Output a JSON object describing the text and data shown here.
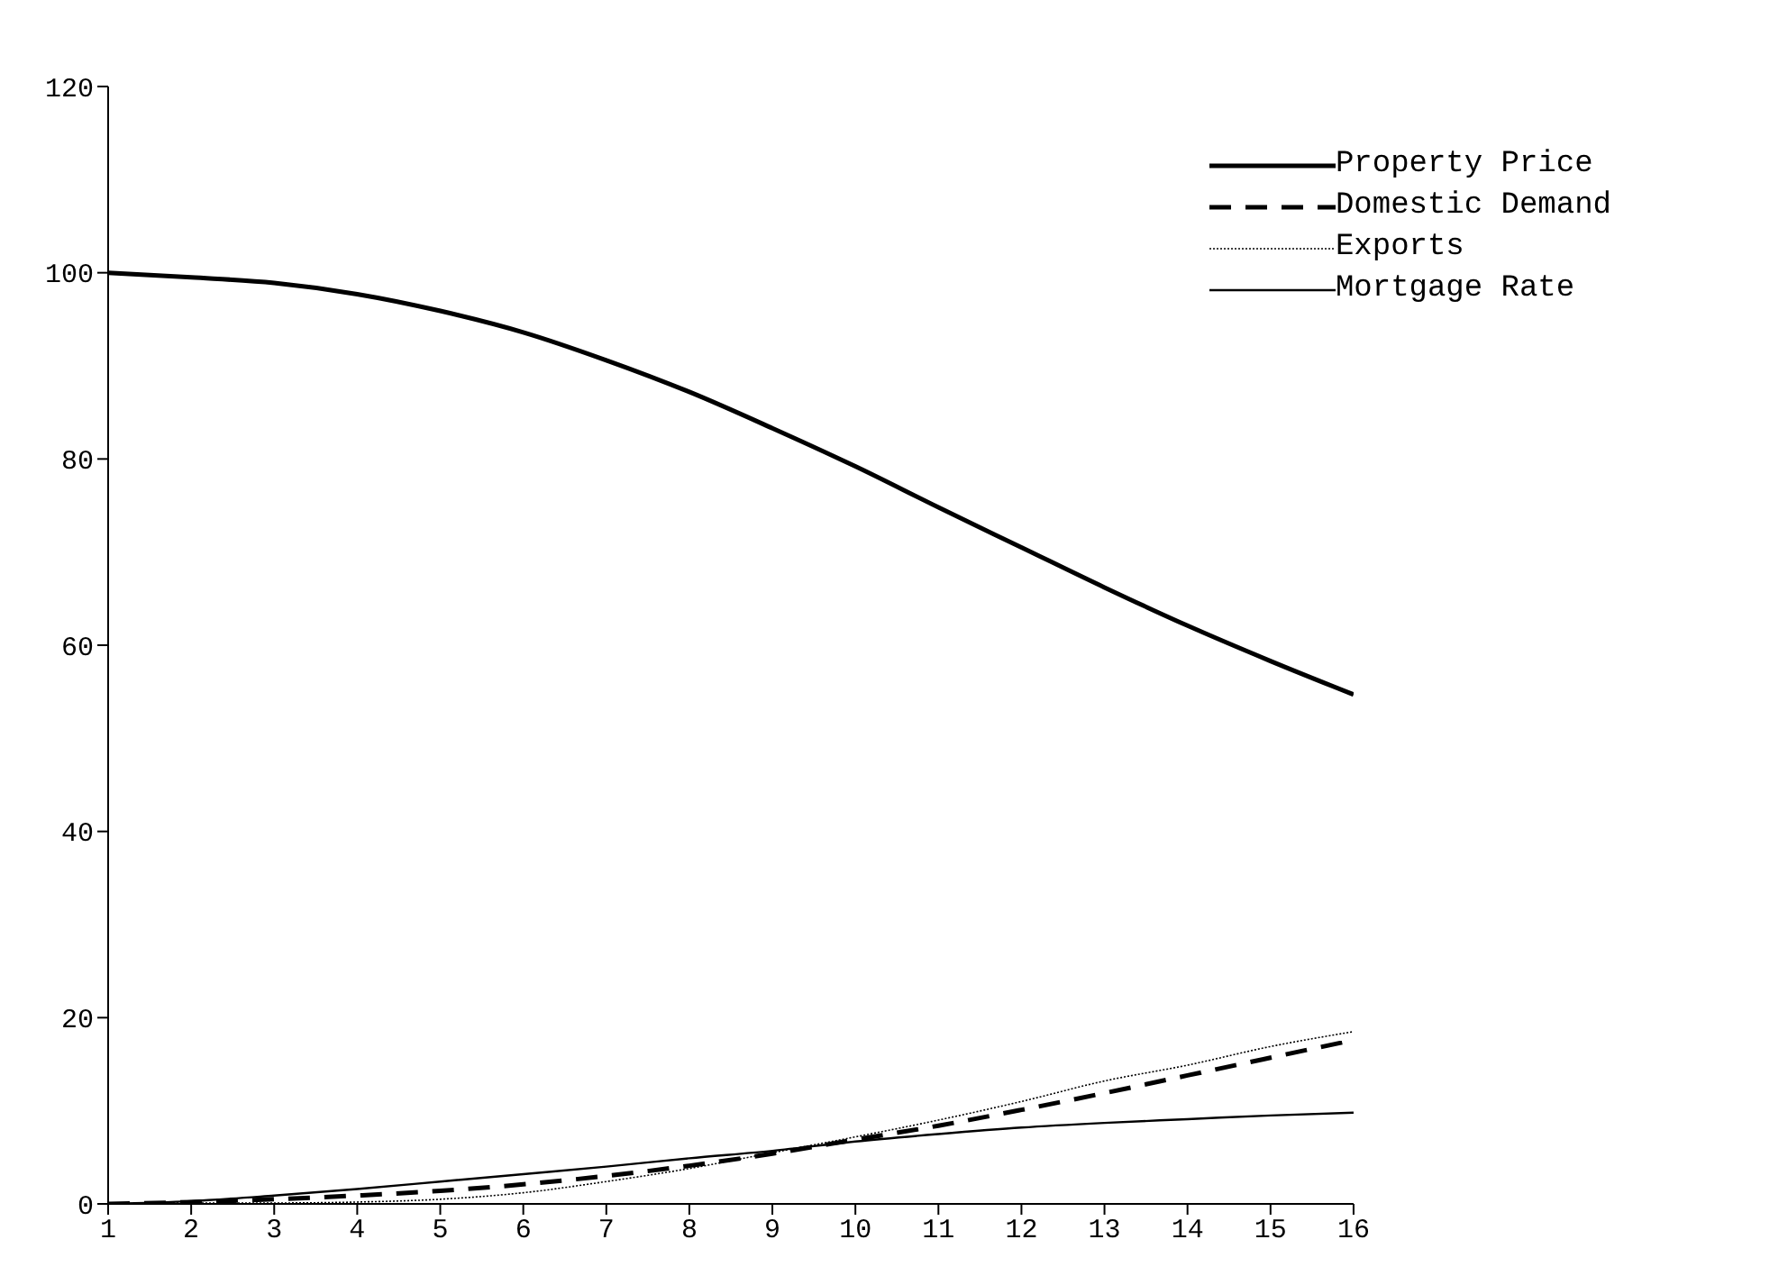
{
  "chart_data": {
    "type": "line",
    "x": [
      1,
      2,
      3,
      4,
      5,
      6,
      7,
      8,
      9,
      10,
      11,
      12,
      13,
      14,
      15,
      16
    ],
    "series": [
      {
        "name": "Property Price",
        "color": "#000000",
        "line_style": "solid",
        "values": [
          100,
          99.5,
          98.9,
          97.7,
          95.9,
          93.6,
          90.6,
          87.2,
          83.3,
          79.2,
          74.8,
          70.5,
          66.2,
          62.1,
          58.3,
          54.7
        ]
      },
      {
        "name": "Domestic Demand",
        "color": "#000000",
        "line_style": "dashed",
        "values": [
          0,
          0.2,
          0.5,
          0.9,
          1.4,
          2.1,
          3.0,
          4.1,
          5.4,
          6.9,
          8.4,
          10.1,
          11.9,
          13.8,
          15.7,
          17.6
        ]
      },
      {
        "name": "Exports",
        "color": "#000000",
        "line_style": "dotted",
        "values": [
          0,
          0.1,
          0.1,
          0.2,
          0.5,
          1.2,
          2.4,
          3.8,
          5.5,
          7.2,
          9.0,
          11.0,
          13.2,
          14.9,
          16.9,
          18.5
        ]
      },
      {
        "name": "Mortgage Rate",
        "color": "#000000",
        "line_style": "solid",
        "values": [
          0,
          0.3,
          0.9,
          1.6,
          2.4,
          3.2,
          4.0,
          4.9,
          5.7,
          6.7,
          7.5,
          8.2,
          8.7,
          9.1,
          9.5,
          9.8
        ]
      }
    ],
    "xlim": [
      1,
      16
    ],
    "xticks": [
      1,
      2,
      3,
      4,
      5,
      6,
      7,
      8,
      9,
      10,
      11,
      12,
      13,
      14,
      15,
      16
    ],
    "ylim": [
      0,
      120
    ],
    "yticks": [
      0,
      20,
      40,
      60,
      80,
      100,
      120
    ],
    "grid": false,
    "legend": "top right",
    "marker": "none"
  }
}
